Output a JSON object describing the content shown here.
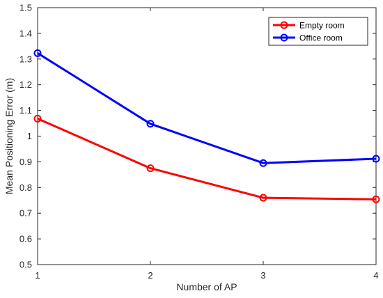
{
  "chart_data": {
    "type": "line",
    "title": "",
    "xlabel": "Number of AP",
    "ylabel": "Mean Positioning Error (m)",
    "x": [
      1,
      2,
      3,
      4
    ],
    "xlim": [
      1,
      4
    ],
    "ylim": [
      0.5,
      1.5
    ],
    "xticks": [
      "1",
      "2",
      "3",
      "4"
    ],
    "yticks": [
      "0.5",
      "0.6",
      "0.7",
      "0.8",
      "0.9",
      "1",
      "1.1",
      "1.2",
      "1.3",
      "1.4",
      "1.5"
    ],
    "grid": false,
    "legend_position": "top-right",
    "series": [
      {
        "name": "Empty room",
        "values": [
          1.068,
          0.875,
          0.76,
          0.754
        ],
        "color": "#ff0000",
        "marker": "circle-open"
      },
      {
        "name": "Office room",
        "values": [
          1.323,
          1.048,
          0.895,
          0.912
        ],
        "color": "#0000ff",
        "marker": "circle-open"
      }
    ]
  }
}
